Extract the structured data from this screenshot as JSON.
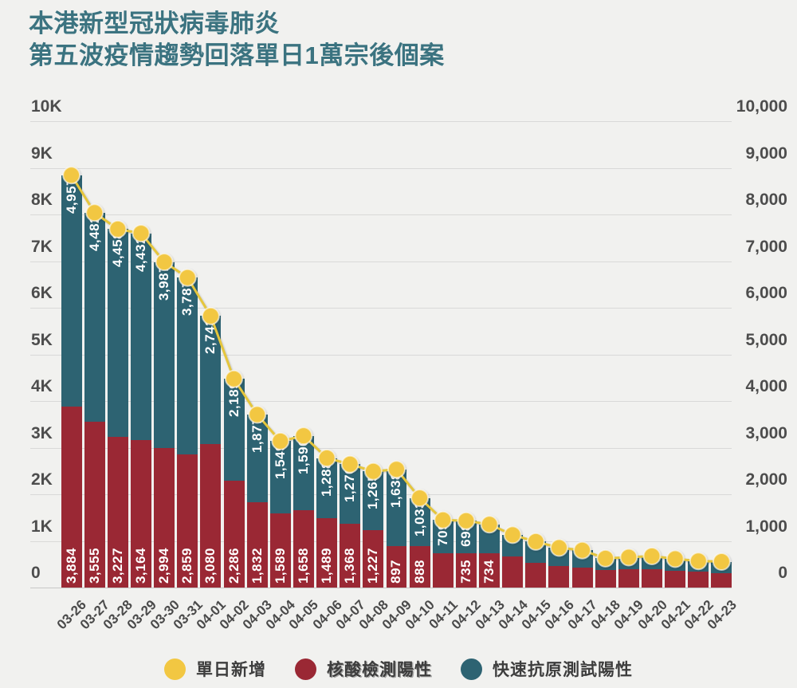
{
  "title": {
    "line1": "本港新型冠狀病毒肺炎",
    "line2": "第五波疫情趨勢回落單日1萬宗後個案"
  },
  "axes": {
    "left_ticks": [
      "10K",
      "9K",
      "8K",
      "7K",
      "6K",
      "5K",
      "4K",
      "3K",
      "2K",
      "1K",
      "0"
    ],
    "right_ticks": [
      "10,000",
      "9,000",
      "8,000",
      "7,000",
      "6,000",
      "5,000",
      "4,000",
      "3,000",
      "2,000",
      "1,000",
      "0"
    ]
  },
  "legend": [
    {
      "label": "單日新增",
      "color": "#f2c742"
    },
    {
      "label": "核酸檢測陽性",
      "color": "#9a2834"
    },
    {
      "label": "快速抗原測試陽性",
      "color": "#2d6372"
    }
  ],
  "colors": {
    "background": "#f1f1ef",
    "title": "#3b7380",
    "pcr_bar": "#9a2834",
    "rat_bar": "#2d6372",
    "daily_line": "#e5c63c",
    "daily_dot": "#f2c742",
    "gridline": "#d9d9d8",
    "axis_text": "#4d4d4d",
    "bar_label_text": "#ffffff"
  },
  "chart_data": {
    "type": "bar",
    "stacked": true,
    "title": "本港新型冠狀病毒肺炎 第五波疫情趨勢回落單日1萬宗後個案",
    "ylim": [
      0,
      10000
    ],
    "y_gridline_step": 1000,
    "legend_position": "bottom",
    "categories": [
      "03-26",
      "03-27",
      "03-28",
      "03-29",
      "03-30",
      "03-31",
      "04-01",
      "04-02",
      "04-03",
      "04-04",
      "04-05",
      "04-06",
      "04-07",
      "04-08",
      "04-09",
      "04-10",
      "04-11",
      "04-12",
      "04-13",
      "04-14",
      "04-15",
      "04-16",
      "04-17",
      "04-18",
      "04-19",
      "04-20",
      "04-21",
      "04-22",
      "04-23"
    ],
    "unlabeled_values_estimated_from_pixels": true,
    "series": [
      {
        "name": "核酸檢測陽性",
        "role": "stack-bottom",
        "color": "#9a2834",
        "values": [
          3884,
          3555,
          3227,
          3164,
          2994,
          2859,
          3080,
          2286,
          1832,
          1589,
          1658,
          1489,
          1368,
          1227,
          897,
          888,
          740,
          735,
          734,
          670,
          535,
          465,
          425,
          370,
          385,
          400,
          365,
          340,
          310
        ],
        "labels": [
          "3,884",
          "3,555",
          "3,227",
          "3,164",
          "2,994",
          "2,859",
          "3,080",
          "2,286",
          "1,832",
          "1,589",
          "1,658",
          "1,489",
          "1,368",
          "1,227",
          "897",
          "888",
          "",
          "735",
          "734",
          "",
          "",
          "",
          "",
          "",
          "",
          "",
          "",
          "",
          ""
        ]
      },
      {
        "name": "快速抗原測試陽性",
        "role": "stack-top",
        "color": "#2d6372",
        "values": [
          4957,
          4482,
          4458,
          4432,
          3987,
          3787,
          2743,
          2189,
          1877,
          1549,
          1596,
          1288,
          1276,
          1265,
          1638,
          1033,
          709,
          698,
          620,
          460,
          450,
          390,
          375,
          255,
          265,
          275,
          250,
          230,
          245
        ],
        "labels": [
          "4,957",
          "4,482",
          "4,458",
          "4,432",
          "3,987",
          "3,787",
          "2,743",
          "2,189",
          "1,877",
          "1,549",
          "1,596",
          "1,288",
          "1,276",
          "1,265",
          "1,638",
          "1,033",
          "709",
          "698",
          "",
          "",
          "",
          "",
          "",
          "",
          "",
          "",
          "",
          "",
          ""
        ]
      },
      {
        "name": "單日新增",
        "role": "line-with-dots",
        "color": "#f2c742",
        "values": [
          8841,
          8037,
          7685,
          7596,
          6981,
          6646,
          5823,
          4475,
          3709,
          3138,
          3254,
          2777,
          2644,
          2492,
          2535,
          1921,
          1449,
          1433,
          1354,
          1130,
          985,
          855,
          800,
          625,
          650,
          675,
          615,
          570,
          555
        ]
      }
    ]
  }
}
